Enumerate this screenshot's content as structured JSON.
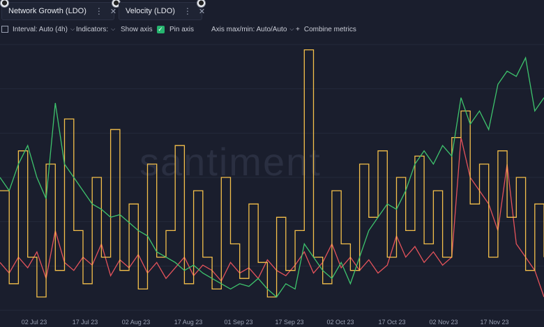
{
  "tabs": [
    {
      "label": "Network Growth (LDO)",
      "color": "#e5535b",
      "dots": "⋮",
      "close": "✕"
    },
    {
      "label": "Velocity (LDO)",
      "color": "#f5c04a",
      "dots": "⋮",
      "close": "✕"
    }
  ],
  "toolbar": {
    "interval": "Interval: Auto (4h)",
    "indicators": "Indicators:",
    "show_axis": "Show axis",
    "pin_axis": "Pin axis",
    "axis_maxmin": "Axis max/min: Auto/Auto",
    "combine": "Combine metrics",
    "plus": "+"
  },
  "watermark": "santiment",
  "chart_data": {
    "type": "line",
    "x_labels": [
      "02 Jul 23",
      "17 Jul 23",
      "02 Aug 23",
      "17 Aug 23",
      "01 Sep 23",
      "17 Sep 23",
      "02 Oct 23",
      "17 Oct 23",
      "02 Nov 23",
      "17 Nov 23"
    ],
    "grid": "horizontal",
    "series": [
      {
        "name": "Network Growth (LDO)",
        "color": "#e5535b",
        "values": [
          0.18,
          0.14,
          0.2,
          0.16,
          0.22,
          0.12,
          0.3,
          0.18,
          0.15,
          0.2,
          0.17,
          0.25,
          0.13,
          0.19,
          0.16,
          0.21,
          0.14,
          0.18,
          0.12,
          0.16,
          0.2,
          0.13,
          0.17,
          0.15,
          0.11,
          0.18,
          0.14,
          0.16,
          0.12,
          0.19,
          0.15,
          0.13,
          0.17,
          0.22,
          0.14,
          0.18,
          0.25,
          0.16,
          0.2,
          0.15,
          0.19,
          0.14,
          0.17,
          0.28,
          0.2,
          0.24,
          0.18,
          0.22,
          0.17,
          0.2,
          0.65,
          0.5,
          0.45,
          0.4,
          0.3,
          0.55,
          0.25,
          0.2,
          0.15,
          0.05
        ]
      },
      {
        "name": "Velocity (LDO)",
        "color": "#f5c04a",
        "values": [
          0.45,
          0.1,
          0.6,
          0.2,
          0.05,
          0.55,
          0.15,
          0.72,
          0.3,
          0.1,
          0.5,
          0.2,
          0.68,
          0.15,
          0.4,
          0.08,
          0.55,
          0.2,
          0.3,
          0.62,
          0.1,
          0.45,
          0.2,
          0.08,
          0.5,
          0.25,
          0.12,
          0.4,
          0.18,
          0.05,
          0.35,
          0.15,
          0.3,
          0.98,
          0.2,
          0.1,
          0.45,
          0.25,
          0.15,
          0.55,
          0.35,
          0.6,
          0.2,
          0.5,
          0.3,
          0.58,
          0.25,
          0.45,
          0.2,
          0.65,
          0.75,
          0.4,
          0.55,
          0.2,
          0.6,
          0.35,
          0.5,
          0.15,
          0.4,
          0.2
        ]
      },
      {
        "name": "",
        "color": "#3ec46d",
        "values": [
          0.5,
          0.45,
          0.55,
          0.62,
          0.5,
          0.42,
          0.78,
          0.55,
          0.5,
          0.45,
          0.4,
          0.38,
          0.35,
          0.36,
          0.33,
          0.3,
          0.28,
          0.22,
          0.2,
          0.18,
          0.15,
          0.17,
          0.14,
          0.12,
          0.1,
          0.08,
          0.1,
          0.09,
          0.12,
          0.08,
          0.05,
          0.1,
          0.08,
          0.25,
          0.2,
          0.15,
          0.12,
          0.18,
          0.1,
          0.2,
          0.3,
          0.35,
          0.4,
          0.38,
          0.45,
          0.55,
          0.6,
          0.55,
          0.62,
          0.58,
          0.8,
          0.7,
          0.75,
          0.68,
          0.85,
          0.9,
          0.88,
          0.95,
          0.75,
          0.8
        ]
      }
    ]
  }
}
